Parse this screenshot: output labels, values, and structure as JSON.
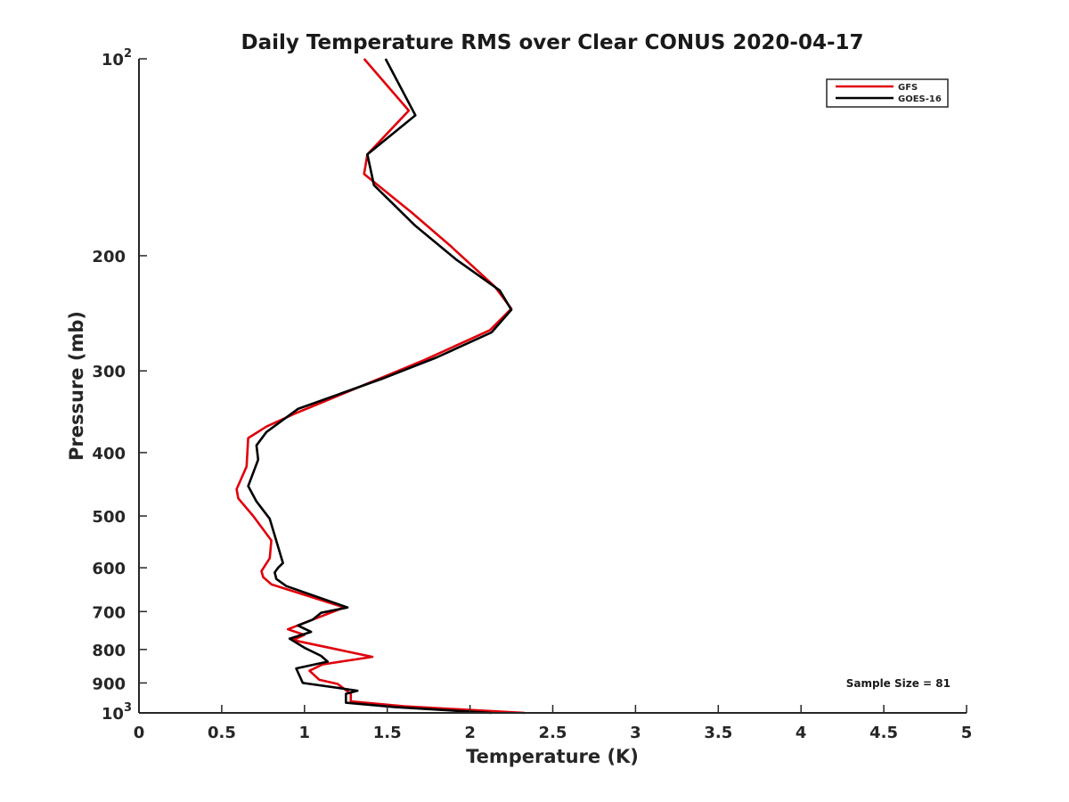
{
  "chart_data": {
    "type": "line",
    "title": "Daily Temperature RMS over Clear CONUS 2020-04-17",
    "xlabel": "Temperature (K)",
    "ylabel": "Pressure (mb)",
    "xlim": [
      0,
      5
    ],
    "ylim": [
      100,
      1000
    ],
    "y_scale": "log",
    "y_reversed": true,
    "x_ticks": [
      {
        "value": 0,
        "label": "0"
      },
      {
        "value": 0.5,
        "label": "0.5"
      },
      {
        "value": 1,
        "label": "1"
      },
      {
        "value": 1.5,
        "label": "1.5"
      },
      {
        "value": 2,
        "label": "2"
      },
      {
        "value": 2.5,
        "label": "2.5"
      },
      {
        "value": 3,
        "label": "3"
      },
      {
        "value": 3.5,
        "label": "3.5"
      },
      {
        "value": 4,
        "label": "4"
      },
      {
        "value": 4.5,
        "label": "4.5"
      },
      {
        "value": 5,
        "label": "5"
      }
    ],
    "y_ticks": [
      {
        "value": 100,
        "base": "10",
        "exp": "2"
      },
      {
        "value": 200,
        "label": "200"
      },
      {
        "value": 300,
        "label": "300"
      },
      {
        "value": 400,
        "label": "400"
      },
      {
        "value": 500,
        "label": "500"
      },
      {
        "value": 600,
        "label": "600"
      },
      {
        "value": 700,
        "label": "700"
      },
      {
        "value": 800,
        "label": "800"
      },
      {
        "value": 900,
        "label": "900"
      },
      {
        "value": 1000,
        "base": "10",
        "exp": "3"
      }
    ],
    "grid": false,
    "legend_position": "top-right",
    "annotation": "Sample Size = 81",
    "series": [
      {
        "name": "GFS",
        "color": "#e0000b",
        "points": [
          [
            1.36,
            100
          ],
          [
            1.63,
            120
          ],
          [
            1.38,
            140
          ],
          [
            1.36,
            150
          ],
          [
            1.65,
            172
          ],
          [
            1.88,
            193
          ],
          [
            2.15,
            223
          ],
          [
            2.25,
            241
          ],
          [
            2.12,
            260
          ],
          [
            1.72,
            289
          ],
          [
            1.47,
            307
          ],
          [
            0.95,
            348
          ],
          [
            0.77,
            365
          ],
          [
            0.66,
            380
          ],
          [
            0.65,
            420
          ],
          [
            0.59,
            455
          ],
          [
            0.6,
            470
          ],
          [
            0.69,
            500
          ],
          [
            0.8,
            545
          ],
          [
            0.79,
            580
          ],
          [
            0.74,
            607
          ],
          [
            0.75,
            620
          ],
          [
            0.8,
            636
          ],
          [
            1.24,
            690
          ],
          [
            1.05,
            720
          ],
          [
            0.9,
            745
          ],
          [
            1.0,
            760
          ],
          [
            0.93,
            774
          ],
          [
            1.41,
            821
          ],
          [
            1.11,
            843
          ],
          [
            1.03,
            862
          ],
          [
            1.09,
            890
          ],
          [
            1.2,
            903
          ],
          [
            1.28,
            935
          ],
          [
            1.28,
            960
          ],
          [
            1.6,
            977
          ],
          [
            2.33,
            1000
          ]
        ]
      },
      {
        "name": "GOES-16",
        "color": "#000000",
        "points": [
          [
            1.49,
            100
          ],
          [
            1.67,
            122
          ],
          [
            1.38,
            140
          ],
          [
            1.42,
            156
          ],
          [
            1.67,
            180
          ],
          [
            1.92,
            203
          ],
          [
            2.18,
            226
          ],
          [
            2.25,
            242
          ],
          [
            2.13,
            262
          ],
          [
            1.8,
            286
          ],
          [
            1.49,
            307
          ],
          [
            0.96,
            343
          ],
          [
            0.77,
            372
          ],
          [
            0.71,
            390
          ],
          [
            0.72,
            410
          ],
          [
            0.66,
            450
          ],
          [
            0.71,
            475
          ],
          [
            0.79,
            505
          ],
          [
            0.87,
            590
          ],
          [
            0.84,
            600
          ],
          [
            0.82,
            610
          ],
          [
            0.83,
            624
          ],
          [
            0.89,
            640
          ],
          [
            1.26,
            690
          ],
          [
            1.1,
            703
          ],
          [
            1.05,
            720
          ],
          [
            0.96,
            735
          ],
          [
            1.04,
            752
          ],
          [
            0.91,
            770
          ],
          [
            1.0,
            795
          ],
          [
            1.1,
            818
          ],
          [
            1.14,
            835
          ],
          [
            0.95,
            855
          ],
          [
            0.99,
            900
          ],
          [
            1.32,
            925
          ],
          [
            1.25,
            935
          ],
          [
            1.25,
            965
          ],
          [
            1.55,
            980
          ],
          [
            2.13,
            1000
          ]
        ]
      }
    ]
  }
}
